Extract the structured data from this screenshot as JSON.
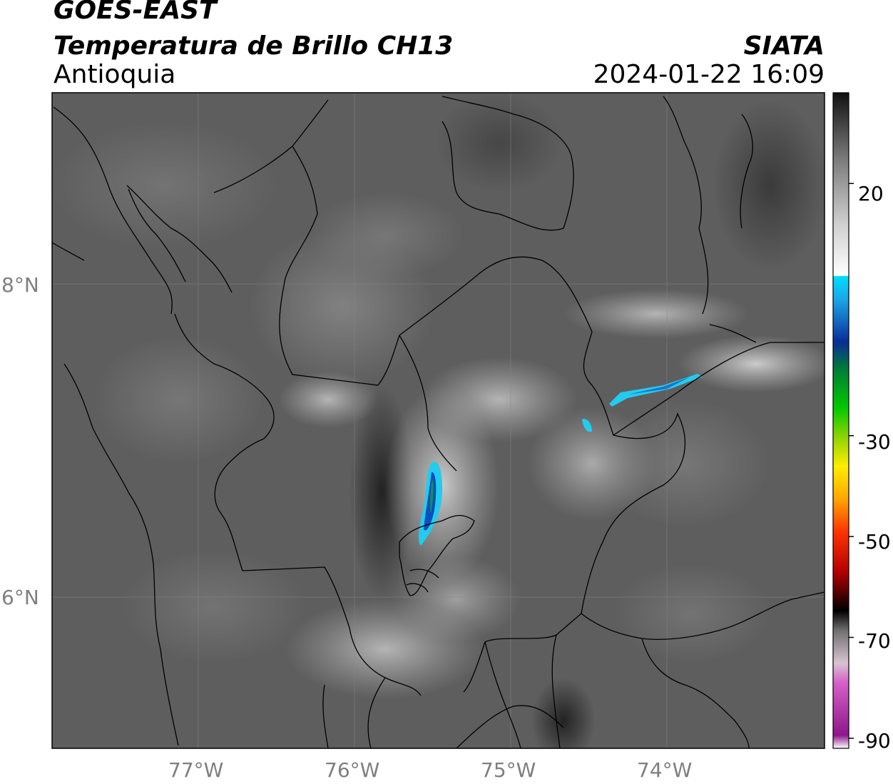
{
  "header": {
    "satellite": "GOES-EAST",
    "product": "Temperatura de Brillo CH13",
    "region": "Antioquia",
    "organization": "SIATA",
    "datetime": "2024-01-22 16:09"
  },
  "axes": {
    "lat_labels": [
      "8°N",
      "6°N"
    ],
    "lon_labels": [
      "77°W",
      "76°W",
      "75°W",
      "74°W"
    ]
  },
  "colorbar": {
    "tick_labels": [
      "20",
      "-30",
      "-50",
      "-70",
      "-90"
    ],
    "tick_values": [
      20,
      -30,
      -50,
      -70,
      -90
    ],
    "range": [
      -92,
      38
    ]
  },
  "colors": {
    "cold_cyan": "#22ccee",
    "cold_blue": "#0a4fbf",
    "background": "#5d5d5d"
  }
}
